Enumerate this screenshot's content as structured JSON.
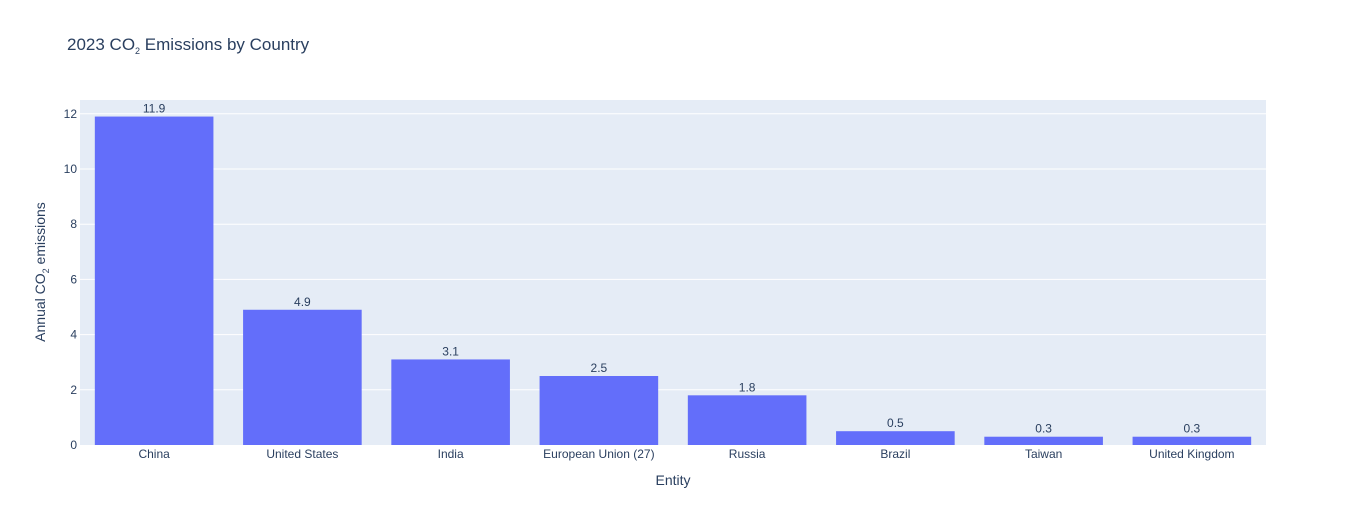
{
  "chart_data": {
    "type": "bar",
    "title_main": "2023 CO",
    "title_sub": "2",
    "title_rest": " Emissions by Country",
    "xlabel": "Entity",
    "ylabel_main": "Annual CO",
    "ylabel_sub": "2",
    "ylabel_rest": " emissions",
    "categories": [
      "China",
      "United States",
      "India",
      "European Union (27)",
      "Russia",
      "Brazil",
      "Taiwan",
      "United Kingdom"
    ],
    "values": [
      11.9,
      4.9,
      3.1,
      2.5,
      1.8,
      0.5,
      0.3,
      0.3
    ],
    "data_labels": [
      "11.9",
      "4.9",
      "3.1",
      "2.5",
      "1.8",
      "0.5",
      "0.3",
      "0.3"
    ],
    "ylim": [
      0,
      12.5
    ],
    "yticks": [
      0,
      2,
      4,
      6,
      8,
      10,
      12
    ],
    "grid": true,
    "colors": {
      "bar": "#636efa",
      "plot_bg": "#e5ecf6",
      "grid": "#ffffff",
      "text": "#2a3f5f"
    }
  }
}
